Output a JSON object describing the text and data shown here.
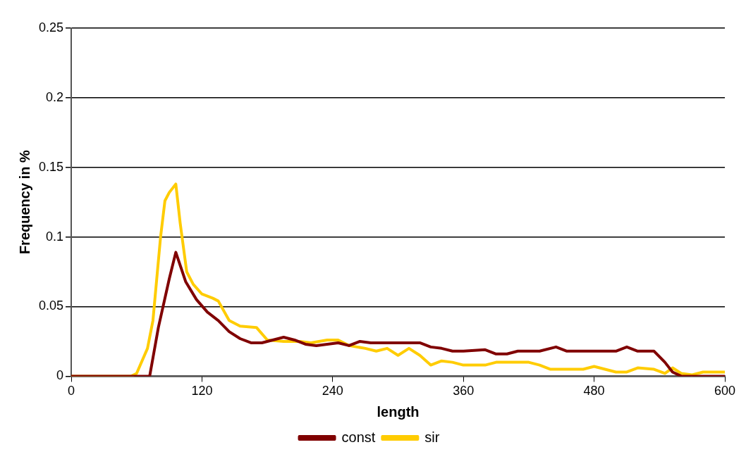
{
  "chart_data": {
    "type": "line",
    "xlabel": "length",
    "ylabel": "Frequency in %",
    "xlim": [
      0,
      600
    ],
    "xticks": [
      0,
      120,
      240,
      360,
      480,
      600
    ],
    "ylim": [
      0,
      0.25
    ],
    "yticks": [
      0,
      0.05,
      0.1,
      0.15,
      0.2,
      0.25
    ],
    "grid": "y",
    "legend": "bottom",
    "marker": "none",
    "line_style": "solid",
    "series": [
      {
        "name": "const",
        "color": "#800000",
        "x": [
          0,
          60,
          72,
          80,
          90,
          96,
          105,
          115,
          125,
          135,
          145,
          155,
          165,
          175,
          185,
          195,
          205,
          215,
          225,
          235,
          245,
          255,
          265,
          275,
          320,
          330,
          340,
          350,
          360,
          380,
          390,
          400,
          410,
          430,
          445,
          455,
          480,
          500,
          510,
          520,
          535,
          545,
          552,
          560,
          600
        ],
        "values": [
          0,
          0,
          0,
          0.035,
          0.07,
          0.089,
          0.068,
          0.055,
          0.046,
          0.04,
          0.032,
          0.027,
          0.024,
          0.024,
          0.026,
          0.028,
          0.026,
          0.023,
          0.022,
          0.023,
          0.024,
          0.022,
          0.025,
          0.024,
          0.024,
          0.021,
          0.02,
          0.018,
          0.018,
          0.019,
          0.016,
          0.016,
          0.018,
          0.018,
          0.021,
          0.018,
          0.018,
          0.018,
          0.021,
          0.018,
          0.018,
          0.01,
          0.003,
          0,
          0
        ]
      },
      {
        "name": "sir",
        "color": "#ffcc00",
        "x": [
          0,
          55,
          60,
          70,
          75,
          82,
          86,
          90,
          96,
          100,
          106,
          112,
          120,
          130,
          135,
          145,
          155,
          170,
          180,
          195,
          210,
          220,
          235,
          245,
          255,
          270,
          280,
          290,
          300,
          310,
          320,
          330,
          340,
          350,
          360,
          380,
          390,
          420,
          430,
          440,
          470,
          480,
          490,
          500,
          510,
          520,
          535,
          545,
          552,
          560,
          570,
          580,
          600
        ],
        "values": [
          0,
          0,
          0.002,
          0.02,
          0.04,
          0.1,
          0.126,
          0.132,
          0.138,
          0.11,
          0.075,
          0.066,
          0.059,
          0.056,
          0.054,
          0.04,
          0.036,
          0.035,
          0.026,
          0.025,
          0.025,
          0.024,
          0.026,
          0.026,
          0.022,
          0.02,
          0.018,
          0.02,
          0.015,
          0.02,
          0.015,
          0.008,
          0.011,
          0.01,
          0.008,
          0.008,
          0.01,
          0.01,
          0.008,
          0.005,
          0.005,
          0.007,
          0.005,
          0.003,
          0.003,
          0.006,
          0.005,
          0.002,
          0.006,
          0.002,
          0.001,
          0.003,
          0.003
        ]
      }
    ]
  }
}
